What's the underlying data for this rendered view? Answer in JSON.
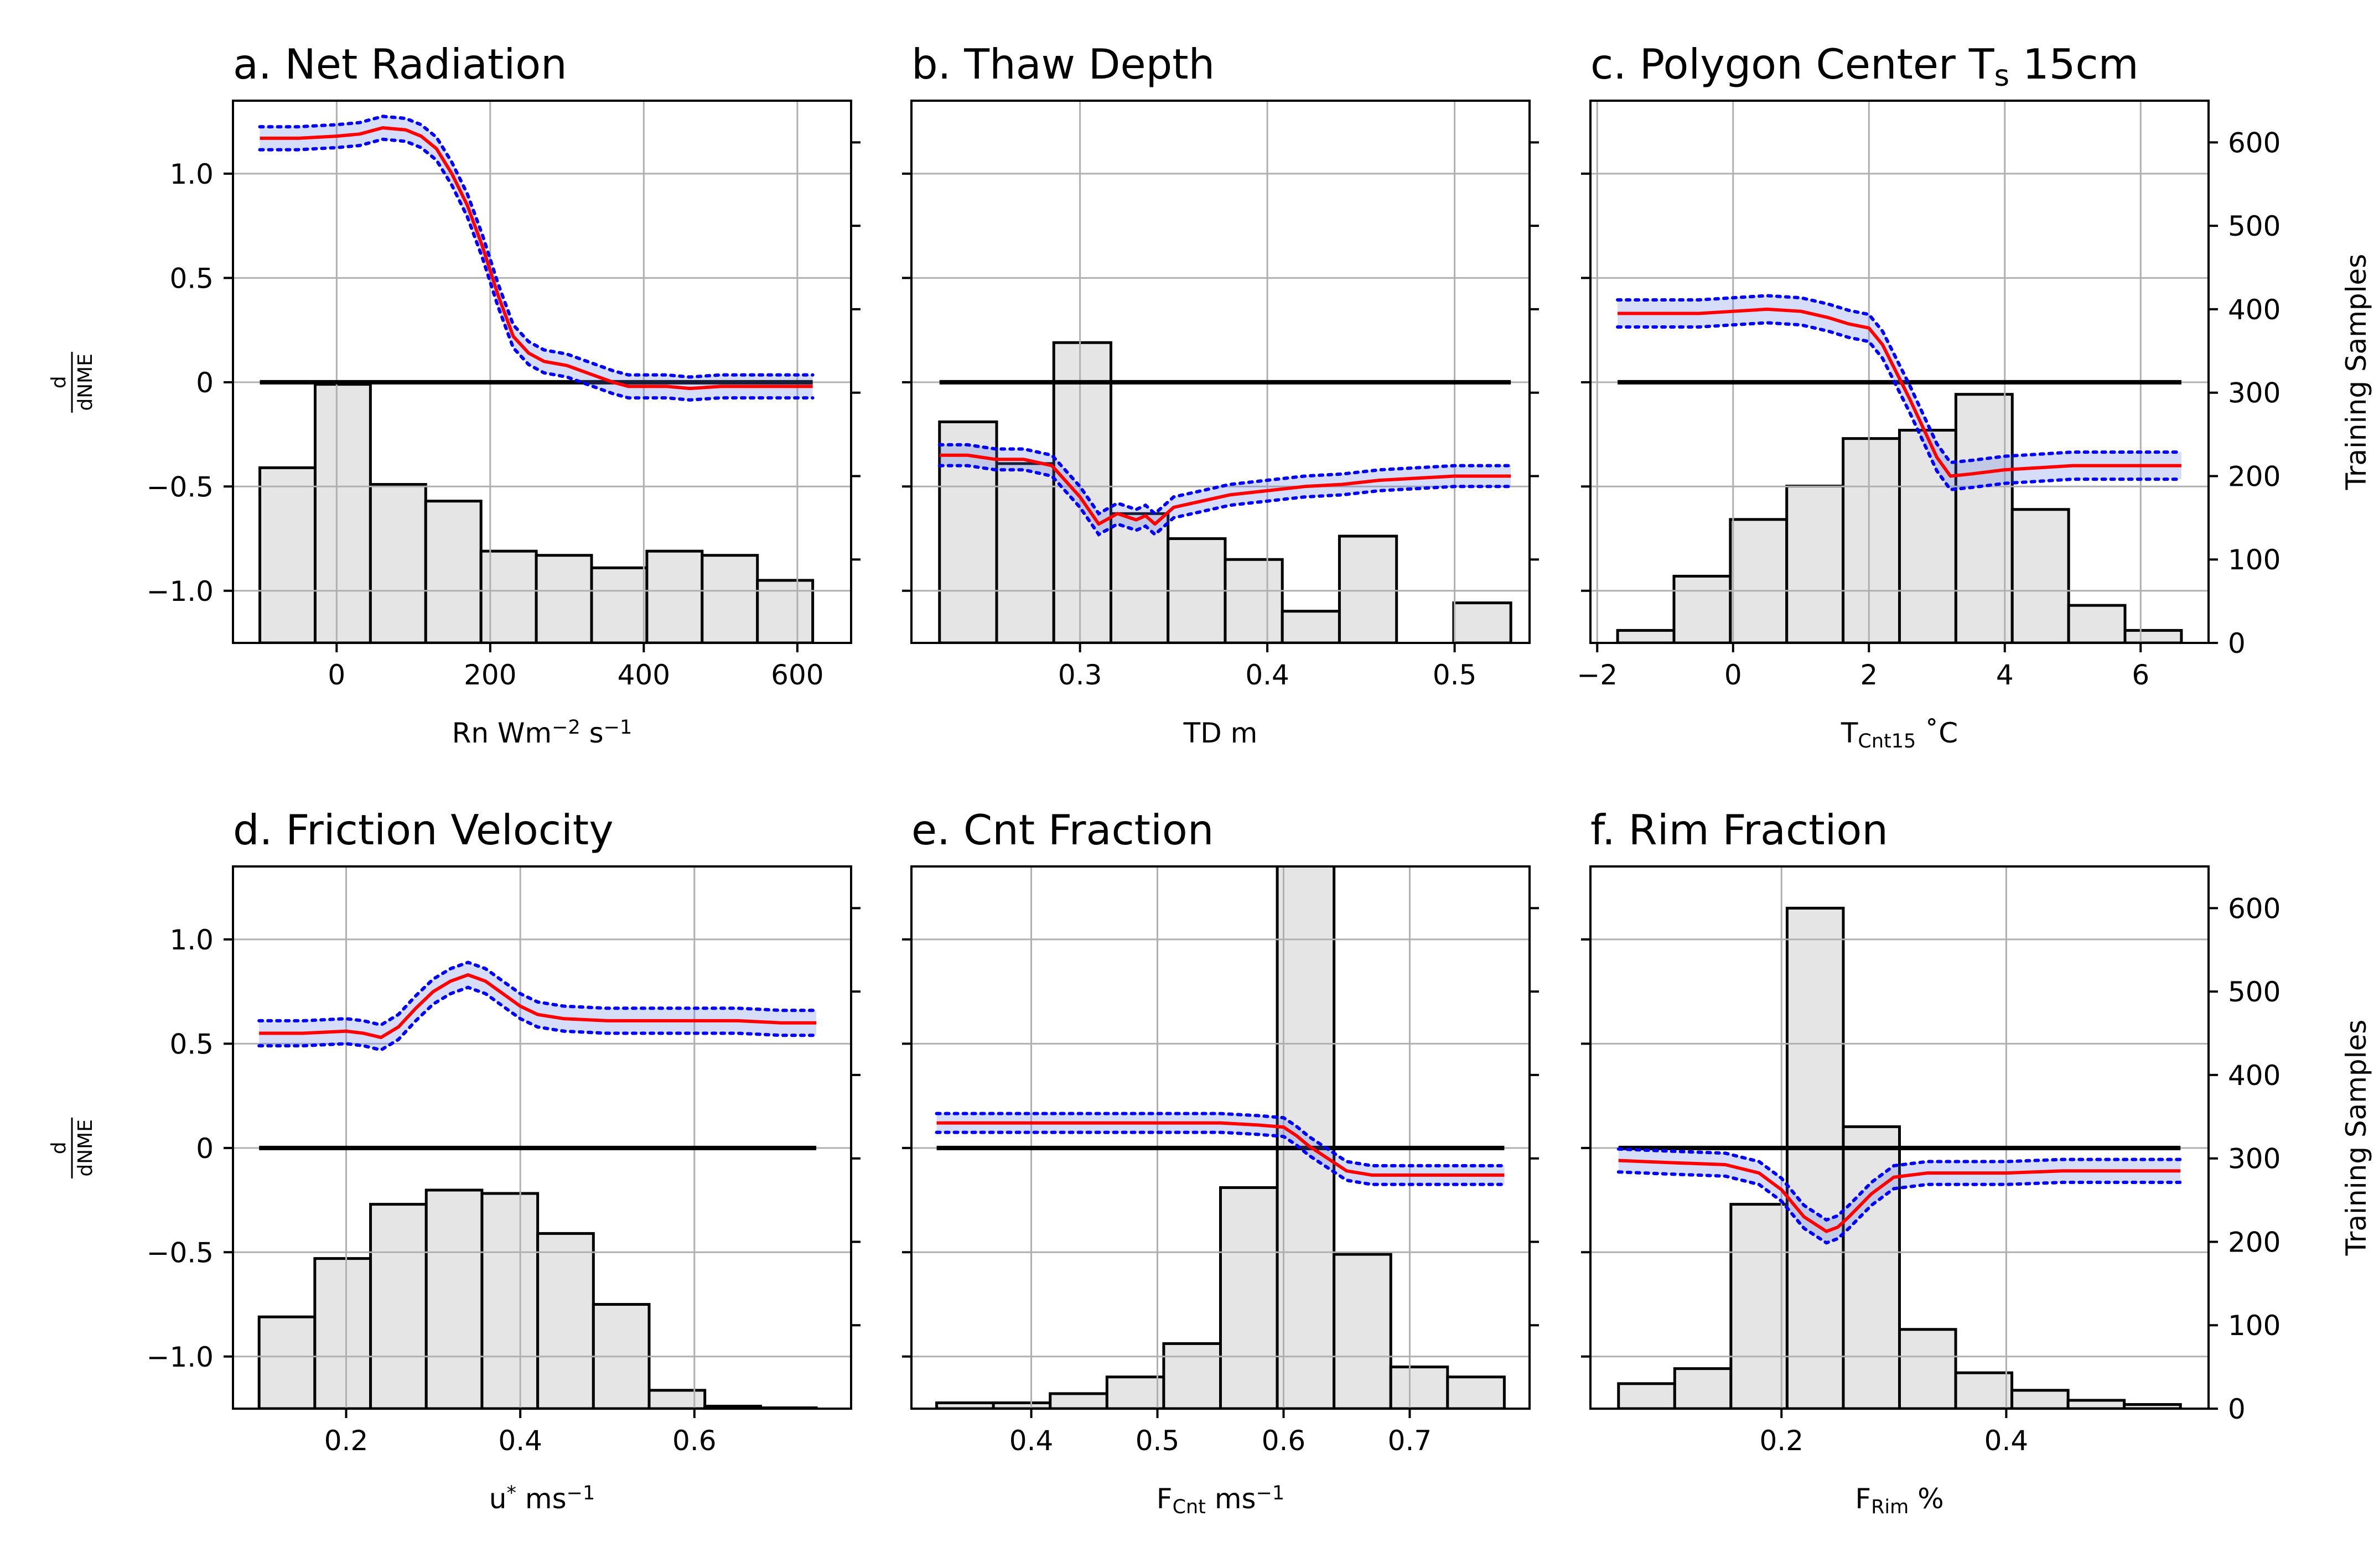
{
  "figure": {
    "ylabel_num": "d",
    "ylabel_den": "dNME",
    "y2label": "Training Samples"
  },
  "chart_data": [
    {
      "panel": "a",
      "type": "line+histogram",
      "title": "a. Net Radiation",
      "title_parts": [
        "a. Net Radiation"
      ],
      "xlabel_parts": [
        {
          "t": "Rn Wm"
        },
        {
          "t": "−2",
          "sup": true
        },
        {
          "t": " s"
        },
        {
          "t": "−1",
          "sup": true
        }
      ],
      "xlim": [
        -135,
        670
      ],
      "xticks": [
        0,
        200,
        400,
        600
      ],
      "ylim": [
        -1.25,
        1.35
      ],
      "yticks": [
        -1.0,
        -0.5,
        0.0,
        0.5,
        1.0
      ],
      "y2lim": [
        0,
        650
      ],
      "y2ticks": [
        0,
        100,
        200,
        300,
        400,
        500,
        600
      ],
      "zero_line": [
        -100,
        620
      ],
      "hist": {
        "edges": [
          -100,
          -28,
          44,
          116,
          188,
          260,
          332,
          404,
          476,
          548,
          620
        ],
        "counts": [
          210,
          310,
          190,
          170,
          110,
          105,
          90,
          110,
          105,
          75
        ]
      },
      "line_x": [
        -100,
        -50,
        0,
        30,
        60,
        90,
        110,
        130,
        150,
        170,
        190,
        210,
        230,
        250,
        270,
        300,
        330,
        360,
        380,
        400,
        430,
        460,
        500,
        540,
        580,
        620
      ],
      "line_y": [
        1.17,
        1.17,
        1.18,
        1.19,
        1.22,
        1.21,
        1.18,
        1.12,
        1.0,
        0.85,
        0.65,
        0.42,
        0.22,
        0.14,
        0.1,
        0.08,
        0.04,
        0.0,
        -0.02,
        -0.02,
        -0.02,
        -0.03,
        -0.02,
        -0.02,
        -0.02,
        -0.02
      ],
      "band": 0.055,
      "right_ticklabels": false
    },
    {
      "panel": "b",
      "type": "line+histogram",
      "title": "b. Thaw Depth",
      "title_parts": [
        "b. Thaw Depth"
      ],
      "xlabel_parts": [
        {
          "t": "TD m"
        }
      ],
      "xlim": [
        0.21,
        0.54
      ],
      "xticks": [
        0.3,
        0.4,
        0.5
      ],
      "ylim": [
        -1.25,
        1.35
      ],
      "yticks": [
        -1.0,
        -0.5,
        0.0,
        0.5,
        1.0
      ],
      "y2lim": [
        0,
        650
      ],
      "y2ticks": [
        0,
        100,
        200,
        300,
        400,
        500,
        600
      ],
      "zero_line": [
        0.225,
        0.53
      ],
      "hist": {
        "edges": [
          0.225,
          0.2555,
          0.286,
          0.3165,
          0.347,
          0.3775,
          0.408,
          0.4385,
          0.469,
          0.4995,
          0.53
        ],
        "counts": [
          265,
          215,
          360,
          155,
          125,
          100,
          38,
          128,
          0,
          48
        ]
      },
      "line_x": [
        0.225,
        0.24,
        0.255,
        0.27,
        0.285,
        0.29,
        0.3,
        0.31,
        0.32,
        0.33,
        0.335,
        0.34,
        0.35,
        0.36,
        0.37,
        0.38,
        0.4,
        0.42,
        0.44,
        0.46,
        0.48,
        0.5,
        0.53
      ],
      "line_y": [
        -0.35,
        -0.35,
        -0.37,
        -0.37,
        -0.4,
        -0.45,
        -0.55,
        -0.68,
        -0.63,
        -0.66,
        -0.64,
        -0.68,
        -0.6,
        -0.58,
        -0.56,
        -0.54,
        -0.52,
        -0.5,
        -0.49,
        -0.47,
        -0.46,
        -0.45,
        -0.45
      ],
      "band": 0.05,
      "right_ticklabels": false
    },
    {
      "panel": "c",
      "type": "line+histogram",
      "title": "c. Polygon Center T",
      "title_parts": [
        "c. Polygon Center T",
        {
          "t": "s",
          "sub": true
        },
        " 15cm"
      ],
      "xlabel_parts": [
        {
          "t": "T"
        },
        {
          "t": "Cnt15",
          "sub": true
        },
        {
          "t": " ˚C"
        }
      ],
      "xlim": [
        -2.1,
        7.0
      ],
      "xticks": [
        -2,
        0,
        2,
        4,
        6
      ],
      "ylim": [
        -1.25,
        1.35
      ],
      "yticks": [
        -1.0,
        -0.5,
        0.0,
        0.5,
        1.0
      ],
      "y2lim": [
        0,
        650
      ],
      "y2ticks": [
        0,
        100,
        200,
        300,
        400,
        500,
        600
      ],
      "zero_line": [
        -1.7,
        6.6
      ],
      "hist": {
        "edges": [
          -1.7,
          -0.87,
          -0.04,
          0.79,
          1.62,
          2.45,
          3.28,
          4.11,
          4.94,
          5.77,
          6.6
        ],
        "counts": [
          15,
          80,
          148,
          188,
          245,
          255,
          298,
          160,
          45,
          15
        ]
      },
      "line_x": [
        -1.7,
        -1.0,
        -0.5,
        0.0,
        0.5,
        1.0,
        1.4,
        1.7,
        2.0,
        2.2,
        2.4,
        2.6,
        2.8,
        3.0,
        3.2,
        3.5,
        4.0,
        5.0,
        6.0,
        6.6
      ],
      "line_y": [
        0.33,
        0.33,
        0.33,
        0.34,
        0.35,
        0.34,
        0.31,
        0.28,
        0.26,
        0.18,
        0.05,
        -0.08,
        -0.22,
        -0.36,
        -0.45,
        -0.44,
        -0.42,
        -0.4,
        -0.4,
        -0.4
      ],
      "band": 0.065,
      "right_ticklabels": true
    },
    {
      "panel": "d",
      "type": "line+histogram",
      "title": "d. Friction Velocity",
      "title_parts": [
        "d. Friction Velocity"
      ],
      "xlabel_parts": [
        {
          "t": "u"
        },
        {
          "t": "*",
          "sup": true
        },
        {
          "t": " ms"
        },
        {
          "t": "−1",
          "sup": true
        }
      ],
      "xlim": [
        0.07,
        0.78
      ],
      "xticks": [
        0.2,
        0.4,
        0.6
      ],
      "ylim": [
        -1.25,
        1.35
      ],
      "yticks": [
        -1.0,
        -0.5,
        0.0,
        0.5,
        1.0
      ],
      "y2lim": [
        0,
        650
      ],
      "y2ticks": [
        0,
        100,
        200,
        300,
        400,
        500,
        600
      ],
      "zero_line": [
        0.1,
        0.74
      ],
      "hist": {
        "edges": [
          0.1,
          0.164,
          0.228,
          0.292,
          0.356,
          0.42,
          0.484,
          0.548,
          0.612,
          0.676,
          0.74
        ],
        "counts": [
          110,
          180,
          245,
          262,
          258,
          210,
          125,
          22,
          3,
          1
        ]
      },
      "line_x": [
        0.1,
        0.15,
        0.2,
        0.22,
        0.24,
        0.26,
        0.28,
        0.3,
        0.32,
        0.34,
        0.36,
        0.38,
        0.4,
        0.42,
        0.45,
        0.5,
        0.55,
        0.6,
        0.65,
        0.7,
        0.74
      ],
      "line_y": [
        0.55,
        0.55,
        0.56,
        0.55,
        0.53,
        0.58,
        0.67,
        0.75,
        0.8,
        0.83,
        0.8,
        0.74,
        0.68,
        0.64,
        0.62,
        0.61,
        0.61,
        0.61,
        0.61,
        0.6,
        0.6
      ],
      "band": 0.06,
      "right_ticklabels": false
    },
    {
      "panel": "e",
      "type": "line+histogram",
      "title": "e. Cnt Fraction",
      "title_parts": [
        "e. Cnt Fraction"
      ],
      "xlabel_parts": [
        {
          "t": "F"
        },
        {
          "t": "Cnt",
          "sub": true
        },
        {
          "t": " ms"
        },
        {
          "t": "−1",
          "sup": true
        }
      ],
      "xlim": [
        0.305,
        0.795
      ],
      "xticks": [
        0.4,
        0.5,
        0.6,
        0.7
      ],
      "ylim": [
        -1.25,
        1.35
      ],
      "yticks": [
        -1.0,
        -0.5,
        0.0,
        0.5,
        1.0
      ],
      "y2lim": [
        0,
        650
      ],
      "y2ticks": [
        0,
        100,
        200,
        300,
        400,
        500,
        600
      ],
      "zero_line": [
        0.325,
        0.775
      ],
      "hist": {
        "edges": [
          0.325,
          0.37,
          0.415,
          0.46,
          0.505,
          0.55,
          0.595,
          0.64,
          0.685,
          0.73,
          0.775
        ],
        "counts": [
          7,
          7,
          18,
          38,
          78,
          265,
          680,
          185,
          50,
          38
        ]
      },
      "line_x": [
        0.325,
        0.4,
        0.5,
        0.55,
        0.58,
        0.6,
        0.61,
        0.62,
        0.63,
        0.64,
        0.65,
        0.67,
        0.7,
        0.74,
        0.775
      ],
      "line_y": [
        0.12,
        0.12,
        0.12,
        0.12,
        0.11,
        0.1,
        0.06,
        0.01,
        -0.03,
        -0.07,
        -0.11,
        -0.13,
        -0.13,
        -0.13,
        -0.13
      ],
      "band": 0.045,
      "right_ticklabels": false
    },
    {
      "panel": "f",
      "type": "line+histogram",
      "title": "f. Rim Fraction",
      "title_parts": [
        "f. Rim Fraction"
      ],
      "xlabel_parts": [
        {
          "t": "F"
        },
        {
          "t": "Rim",
          "sub": true
        },
        {
          "t": " %"
        }
      ],
      "xlim": [
        0.03,
        0.58
      ],
      "xticks": [
        0.2,
        0.4
      ],
      "ylim": [
        -1.25,
        1.35
      ],
      "yticks": [
        -1.0,
        -0.5,
        0.0,
        0.5,
        1.0
      ],
      "y2lim": [
        0,
        650
      ],
      "y2ticks": [
        0,
        100,
        200,
        300,
        400,
        500,
        600
      ],
      "zero_line": [
        0.055,
        0.555
      ],
      "hist": {
        "edges": [
          0.055,
          0.105,
          0.155,
          0.205,
          0.255,
          0.305,
          0.355,
          0.405,
          0.455,
          0.505,
          0.555
        ],
        "counts": [
          30,
          48,
          245,
          600,
          338,
          95,
          43,
          22,
          10,
          5
        ]
      },
      "line_x": [
        0.055,
        0.1,
        0.15,
        0.18,
        0.2,
        0.22,
        0.24,
        0.25,
        0.26,
        0.28,
        0.3,
        0.33,
        0.36,
        0.4,
        0.45,
        0.5,
        0.555
      ],
      "line_y": [
        -0.06,
        -0.07,
        -0.08,
        -0.12,
        -0.2,
        -0.33,
        -0.4,
        -0.38,
        -0.33,
        -0.22,
        -0.14,
        -0.12,
        -0.12,
        -0.12,
        -0.11,
        -0.11,
        -0.11
      ],
      "band": 0.055,
      "right_ticklabels": true
    }
  ]
}
